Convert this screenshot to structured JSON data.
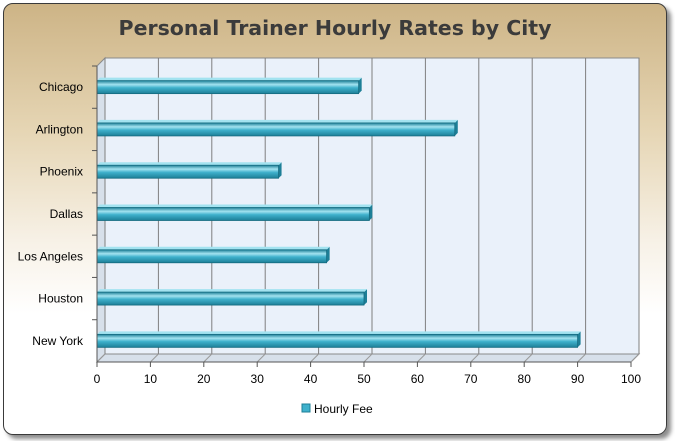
{
  "chart_data": {
    "type": "bar",
    "orientation": "horizontal",
    "title": "Personal Trainer Hourly Rates by City",
    "categories": [
      "Chicago",
      "Arlington",
      "Phoenix",
      "Dallas",
      "Los Angeles",
      "Houston",
      "New York"
    ],
    "series": [
      {
        "name": "Hourly Fee",
        "values": [
          49,
          67,
          34,
          51,
          43,
          50,
          90
        ]
      }
    ],
    "xlim": [
      0,
      100
    ],
    "xticks": [
      0,
      10,
      20,
      30,
      40,
      50,
      60,
      70,
      80,
      90,
      100
    ],
    "grid": true,
    "legend": "bottom",
    "colors": {
      "bar": "#3fb1cc",
      "bar_dark": "#1d7f97",
      "bar_light": "#a3e3f0",
      "plot_bg": "#eaf1fa",
      "title": "#3b3b3b"
    }
  }
}
